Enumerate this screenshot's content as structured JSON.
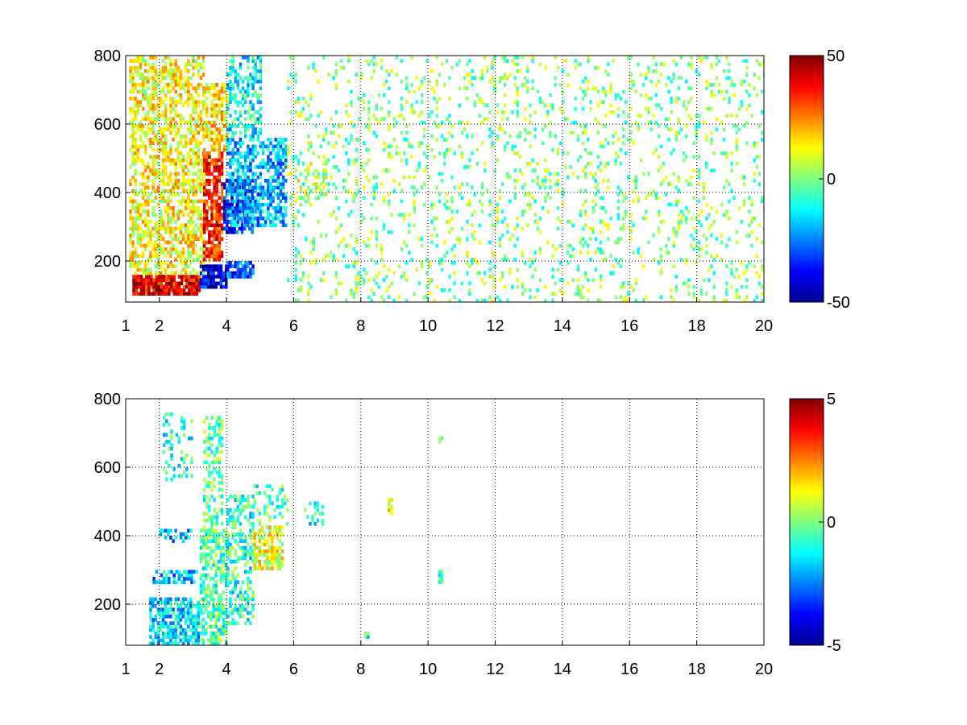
{
  "chart_data": [
    {
      "type": "heatmap",
      "title": "",
      "xlabel": "",
      "ylabel": "",
      "xlim": [
        1,
        20
      ],
      "ylim": [
        80,
        800
      ],
      "x_ticks": [
        "1",
        "2",
        "4",
        "6",
        "8",
        "10",
        "12",
        "14",
        "16",
        "18",
        "20"
      ],
      "x_tick_values": [
        1,
        2,
        4,
        6,
        8,
        10,
        12,
        14,
        16,
        18,
        20
      ],
      "y_ticks": [
        "200",
        "400",
        "600",
        "800"
      ],
      "y_tick_values": [
        200,
        400,
        600,
        800
      ],
      "grid": true,
      "colorbar": {
        "min": -50,
        "max": 50,
        "ticks": [
          "50",
          "0",
          "-50"
        ],
        "tick_values": [
          50,
          0,
          -50
        ],
        "colormap": "jet"
      },
      "regions": [
        {
          "x": [
            1.2,
            3.2
          ],
          "y": [
            100,
            160
          ],
          "value": 40,
          "density": 0.9
        },
        {
          "x": [
            3.2,
            4.0
          ],
          "y": [
            120,
            190
          ],
          "value": -40,
          "density": 0.85
        },
        {
          "x": [
            4.0,
            4.8
          ],
          "y": [
            150,
            200
          ],
          "value": -30,
          "density": 0.8
        },
        {
          "x": [
            1.1,
            3.3
          ],
          "y": [
            160,
            800
          ],
          "value": 12,
          "density": 0.55
        },
        {
          "x": [
            3.3,
            3.9
          ],
          "y": [
            200,
            520
          ],
          "value": 35,
          "density": 0.75
        },
        {
          "x": [
            3.3,
            4.0
          ],
          "y": [
            520,
            720
          ],
          "value": 15,
          "density": 0.6
        },
        {
          "x": [
            3.9,
            4.8
          ],
          "y": [
            280,
            440
          ],
          "value": -35,
          "density": 0.7
        },
        {
          "x": [
            4.0,
            5.8
          ],
          "y": [
            300,
            560
          ],
          "value": -20,
          "density": 0.6
        },
        {
          "x": [
            4.0,
            5.0
          ],
          "y": [
            560,
            800
          ],
          "value": -12,
          "density": 0.45
        },
        {
          "x": [
            6.1,
            7.0
          ],
          "y": [
            380,
            500
          ],
          "value": 5,
          "density": 0.3
        },
        {
          "x": [
            5.8,
            20.0
          ],
          "y": [
            80,
            800
          ],
          "value": 0,
          "density": 0.13
        }
      ]
    },
    {
      "type": "heatmap",
      "title": "",
      "xlabel": "",
      "ylabel": "",
      "xlim": [
        1,
        20
      ],
      "ylim": [
        80,
        800
      ],
      "x_ticks": [
        "1",
        "2",
        "4",
        "6",
        "8",
        "10",
        "12",
        "14",
        "16",
        "18",
        "20"
      ],
      "x_tick_values": [
        1,
        2,
        4,
        6,
        8,
        10,
        12,
        14,
        16,
        18,
        20
      ],
      "y_ticks": [
        "200",
        "400",
        "600",
        "800"
      ],
      "y_tick_values": [
        200,
        400,
        600,
        800
      ],
      "grid": true,
      "colorbar": {
        "min": -5,
        "max": 5,
        "ticks": [
          "5",
          "0",
          "-5"
        ],
        "tick_values": [
          5,
          0,
          -5
        ],
        "colormap": "jet"
      },
      "regions": [
        {
          "x": [
            1.7,
            3.2
          ],
          "y": [
            80,
            220
          ],
          "value": -1.5,
          "density": 0.7
        },
        {
          "x": [
            3.2,
            4.0
          ],
          "y": [
            80,
            420
          ],
          "value": -0.5,
          "density": 0.6
        },
        {
          "x": [
            4.0,
            4.8
          ],
          "y": [
            140,
            520
          ],
          "value": -0.8,
          "density": 0.5
        },
        {
          "x": [
            4.8,
            5.7
          ],
          "y": [
            300,
            430
          ],
          "value": 1.0,
          "density": 0.6
        },
        {
          "x": [
            4.8,
            5.8
          ],
          "y": [
            430,
            550
          ],
          "value": -0.5,
          "density": 0.3
        },
        {
          "x": [
            1.8,
            3.1
          ],
          "y": [
            260,
            300
          ],
          "value": -2.0,
          "density": 0.6
        },
        {
          "x": [
            2.0,
            3.0
          ],
          "y": [
            380,
            420
          ],
          "value": -2.0,
          "density": 0.3
        },
        {
          "x": [
            2.1,
            3.0
          ],
          "y": [
            560,
            760
          ],
          "value": -1.0,
          "density": 0.2
        },
        {
          "x": [
            3.3,
            3.9
          ],
          "y": [
            420,
            750
          ],
          "value": -0.3,
          "density": 0.4
        },
        {
          "x": [
            6.3,
            6.9
          ],
          "y": [
            430,
            500
          ],
          "value": -1.0,
          "density": 0.35
        },
        {
          "x": [
            8.8,
            8.9
          ],
          "y": [
            460,
            510
          ],
          "value": 1.5,
          "density": 0.9
        },
        {
          "x": [
            10.3,
            10.4
          ],
          "y": [
            670,
            690
          ],
          "value": 0.5,
          "density": 0.9
        },
        {
          "x": [
            10.3,
            10.4
          ],
          "y": [
            260,
            300
          ],
          "value": -1.0,
          "density": 0.8
        },
        {
          "x": [
            8.1,
            8.2
          ],
          "y": [
            100,
            120
          ],
          "value": -1.0,
          "density": 0.9
        }
      ]
    }
  ]
}
